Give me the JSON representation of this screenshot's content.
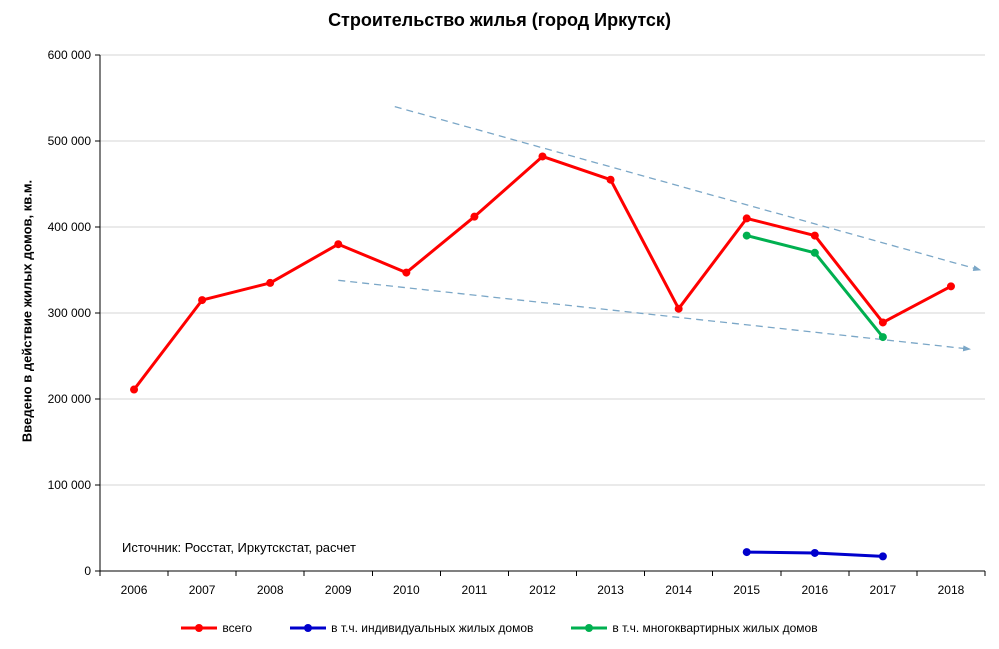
{
  "chart_data": {
    "type": "line",
    "title": "Строительство жилья (город Иркутск)",
    "ylabel": "Введено в действие жилых домов, кв.м.",
    "xlabel": "",
    "ylim": [
      0,
      600000
    ],
    "ytick_step": 100000,
    "grid": true,
    "legend_position": "bottom",
    "categories": [
      2006,
      2007,
      2008,
      2009,
      2010,
      2011,
      2012,
      2013,
      2014,
      2015,
      2016,
      2017,
      2018
    ],
    "series": [
      {
        "name": "всего",
        "color": "#ff0000",
        "values": [
          211000,
          315000,
          335000,
          380000,
          347000,
          412000,
          482000,
          455000,
          305000,
          410000,
          390000,
          289000,
          331000
        ]
      },
      {
        "name": "в т.ч.  индивидуальных жилых домов",
        "color": "#0000cc",
        "values": [
          null,
          null,
          null,
          null,
          null,
          null,
          null,
          null,
          null,
          22000,
          21000,
          17000,
          null
        ]
      },
      {
        "name": "в т.ч.  многоквартирных жилых домов",
        "color": "#00b050",
        "values": [
          null,
          null,
          null,
          null,
          null,
          null,
          null,
          null,
          null,
          390000,
          370000,
          272000,
          null
        ]
      }
    ],
    "trendlines": [
      {
        "from": {
          "x": 2009.83,
          "y": 540000
        },
        "to": {
          "x": 2018.43,
          "y": 350000
        },
        "color": "#7ba7c7",
        "style": "dashed",
        "arrow": true
      },
      {
        "from": {
          "x": 2009.0,
          "y": 338000
        },
        "to": {
          "x": 2018.28,
          "y": 258000
        },
        "color": "#7ba7c7",
        "style": "dashed",
        "arrow": true
      }
    ],
    "annotations": [
      {
        "text": "Источник: Росстат, Иркутскстат, расчет",
        "x": 2005.8,
        "y": 30000
      }
    ],
    "colors": {
      "gridline": "#d6d6d6",
      "axis": "#000000",
      "background": "#ffffff"
    }
  }
}
